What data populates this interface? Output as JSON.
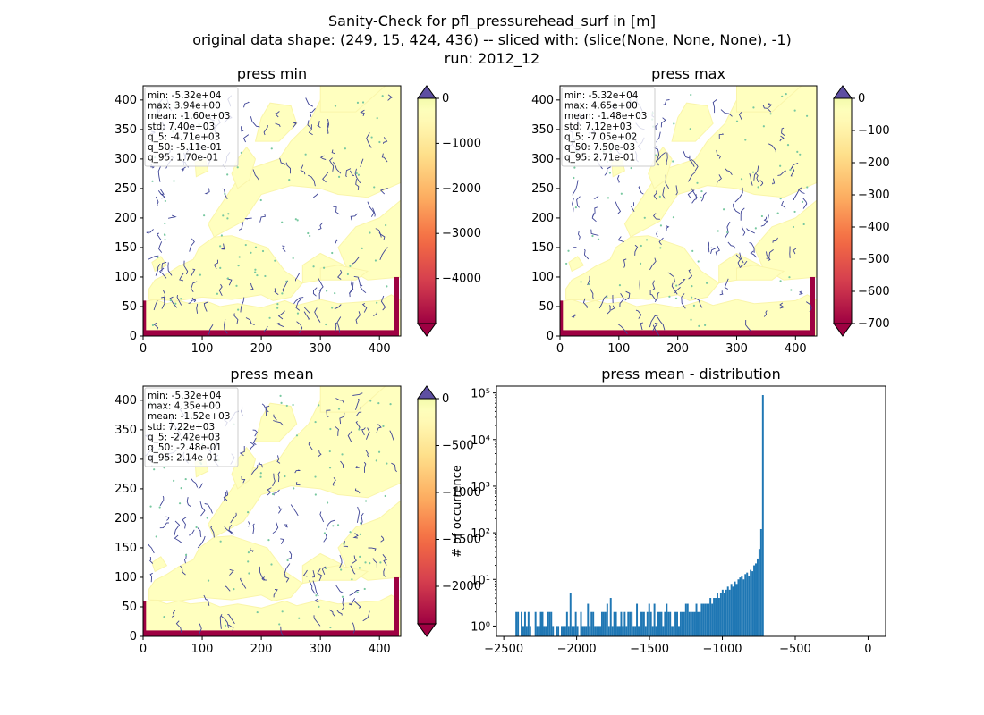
{
  "figure": {
    "title_lines": [
      "Sanity-Check for pfl_pressurehead_surf in [m]",
      "original data shape: (249, 15, 424, 436) -- sliced with: (slice(None, None, None), -1)",
      "run: 2012_12"
    ]
  },
  "chart_data": [
    {
      "type": "heatmap",
      "title": "press min",
      "x_ticks": [
        0,
        100,
        200,
        300,
        400
      ],
      "y_ticks": [
        0,
        50,
        100,
        150,
        200,
        250,
        300,
        350,
        400
      ],
      "xlim": [
        0,
        436
      ],
      "ylim": [
        0,
        424
      ],
      "colormap": "Spectral",
      "colorbar": {
        "vmin": -5000,
        "vmax": 0,
        "ticks": [
          0,
          -1000,
          -2000,
          -3000,
          -4000
        ],
        "extend": "both",
        "over_color": "#5e4fa2",
        "under_color": "#9e0142"
      },
      "stats": [
        "min: -5.32e+04",
        "max: 3.94e+00",
        "mean: -1.60e+03",
        "std: 7.40e+03",
        "q_5: -4.71e+03",
        "q_50: -5.11e-01",
        "q_95: 1.70e-01"
      ]
    },
    {
      "type": "heatmap",
      "title": "press max",
      "x_ticks": [
        0,
        100,
        200,
        300,
        400
      ],
      "y_ticks": [
        0,
        50,
        100,
        150,
        200,
        250,
        300,
        350,
        400
      ],
      "xlim": [
        0,
        436
      ],
      "ylim": [
        0,
        424
      ],
      "colormap": "Spectral",
      "colorbar": {
        "vmin": -700,
        "vmax": 0,
        "ticks": [
          0,
          -100,
          -200,
          -300,
          -400,
          -500,
          -600,
          -700
        ],
        "extend": "both",
        "over_color": "#5e4fa2",
        "under_color": "#9e0142"
      },
      "stats": [
        "min: -5.32e+04",
        "max: 4.65e+00",
        "mean: -1.48e+03",
        "std: 7.12e+03",
        "q_5: -7.05e+02",
        "q_50: 7.50e-03",
        "q_95: 2.71e-01"
      ]
    },
    {
      "type": "heatmap",
      "title": "press mean",
      "x_ticks": [
        0,
        100,
        200,
        300,
        400
      ],
      "y_ticks": [
        0,
        50,
        100,
        150,
        200,
        250,
        300,
        350,
        400
      ],
      "xlim": [
        0,
        436
      ],
      "ylim": [
        0,
        424
      ],
      "colormap": "Spectral",
      "colorbar": {
        "vmin": -2400,
        "vmax": 0,
        "ticks": [
          0,
          -500,
          -1000,
          -1500,
          -2000
        ],
        "extend": "both",
        "over_color": "#5e4fa2",
        "under_color": "#9e0142"
      },
      "stats": [
        "min: -5.32e+04",
        "max: 4.35e+00",
        "mean: -1.52e+03",
        "std: 7.22e+03",
        "q_5: -2.42e+03",
        "q_50: -2.48e-01",
        "q_95: 2.14e-01"
      ]
    },
    {
      "type": "bar",
      "title": "press mean - distribution",
      "ylabel": "# of occurrence",
      "xlabel": "",
      "yscale": "log",
      "xlim": [
        -2550,
        120
      ],
      "ylim": [
        0.6,
        140000
      ],
      "x_ticks": [
        -2500,
        -2000,
        -1500,
        -1000,
        -500,
        0
      ],
      "y_ticks": [
        1,
        10,
        100,
        1000,
        10000,
        100000
      ],
      "bar_color": "#1f77b4",
      "bin_start": -2420,
      "bin_width": 12,
      "counts": [
        2,
        2,
        0,
        2,
        1,
        2,
        1,
        2,
        1,
        0,
        0,
        2,
        1,
        1,
        2,
        2,
        1,
        1,
        2,
        2,
        2,
        1,
        0,
        1,
        1,
        0,
        1,
        1,
        1,
        2,
        1,
        5,
        1,
        1,
        2,
        1,
        0,
        2,
        1,
        1,
        1,
        3,
        1,
        2,
        2,
        1,
        1,
        1,
        1,
        2,
        2,
        2,
        3,
        1,
        4,
        1,
        2,
        2,
        1,
        1,
        2,
        1,
        2,
        1,
        2,
        2,
        2,
        1,
        1,
        3,
        1,
        2,
        2,
        2,
        1,
        2,
        3,
        2,
        1,
        3,
        1,
        2,
        2,
        2,
        1,
        2,
        3,
        2,
        2,
        1,
        1,
        2,
        2,
        1,
        2,
        2,
        2,
        3,
        3,
        2,
        2,
        2,
        2,
        3,
        2,
        2,
        3,
        3,
        3,
        3,
        3,
        4,
        3,
        4,
        4,
        5,
        4,
        5,
        6,
        5,
        6,
        7,
        6,
        8,
        7,
        9,
        8,
        10,
        11,
        12,
        10,
        13,
        14,
        12,
        16,
        15,
        20,
        22,
        28,
        45,
        120,
        90000
      ]
    }
  ]
}
